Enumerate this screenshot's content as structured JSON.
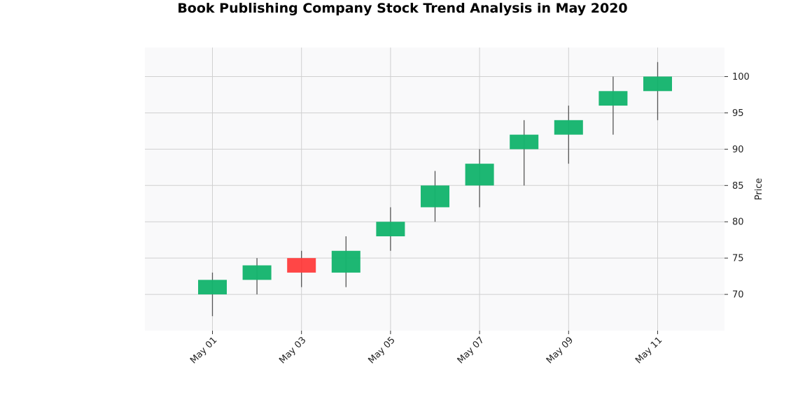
{
  "chart_data": {
    "type": "candlestick",
    "title": "Book Publishing Company Stock Trend Analysis in May 2020",
    "xlabel": "",
    "ylabel": "Price",
    "ylim": [
      65,
      104
    ],
    "y_ticks": [
      70,
      75,
      80,
      85,
      90,
      95,
      100
    ],
    "x_tick_labels": [
      "May 01",
      "May 03",
      "May 05",
      "May 07",
      "May 09",
      "May 11"
    ],
    "grid": true,
    "y_axis_side": "right",
    "colors": {
      "up": "#16b56e",
      "down": "#ff4040",
      "wick": "#555555",
      "plot_bg": "#f9f9fa",
      "grid": "#d0d0d0"
    },
    "dates": [
      "2020-05-01",
      "2020-05-02",
      "2020-05-03",
      "2020-05-04",
      "2020-05-05",
      "2020-05-06",
      "2020-05-07",
      "2020-05-08",
      "2020-05-09",
      "2020-05-10",
      "2020-05-11"
    ],
    "series": [
      {
        "open": 70,
        "high": 73,
        "low": 67,
        "close": 72
      },
      {
        "open": 72,
        "high": 75,
        "low": 70,
        "close": 74
      },
      {
        "open": 75,
        "high": 76,
        "low": 71,
        "close": 73
      },
      {
        "open": 73,
        "high": 78,
        "low": 71,
        "close": 76
      },
      {
        "open": 78,
        "high": 82,
        "low": 76,
        "close": 80
      },
      {
        "open": 82,
        "high": 87,
        "low": 80,
        "close": 85
      },
      {
        "open": 85,
        "high": 90,
        "low": 82,
        "close": 88
      },
      {
        "open": 90,
        "high": 94,
        "low": 85,
        "close": 92
      },
      {
        "open": 92,
        "high": 96,
        "low": 88,
        "close": 94
      },
      {
        "open": 96,
        "high": 100,
        "low": 92,
        "close": 98
      },
      {
        "open": 98,
        "high": 102,
        "low": 94,
        "close": 100
      }
    ]
  }
}
